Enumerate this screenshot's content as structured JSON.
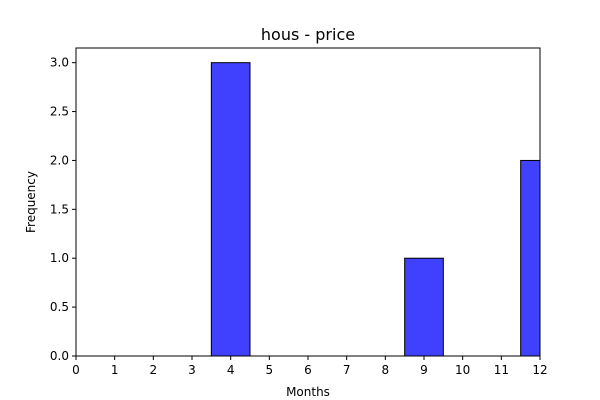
{
  "chart_data": {
    "type": "bar",
    "title": "hous - price",
    "xlabel": "Months",
    "ylabel": "Frequency",
    "xlim": [
      0,
      12
    ],
    "ylim": [
      0,
      3.15
    ],
    "x_ticks": [
      0,
      1,
      2,
      3,
      4,
      5,
      6,
      7,
      8,
      9,
      10,
      11,
      12
    ],
    "y_ticks": [
      0.0,
      0.5,
      1.0,
      1.5,
      2.0,
      2.5,
      3.0
    ],
    "y_tick_labels": [
      "0.0",
      "0.5",
      "1.0",
      "1.5",
      "2.0",
      "2.5",
      "3.0"
    ],
    "bars": [
      {
        "x": 4,
        "value": 3
      },
      {
        "x": 9,
        "value": 1
      },
      {
        "x": 12,
        "value": 2
      }
    ],
    "bar_width": 1,
    "bar_color": "#4040ff",
    "grid": false,
    "legend": "none"
  }
}
